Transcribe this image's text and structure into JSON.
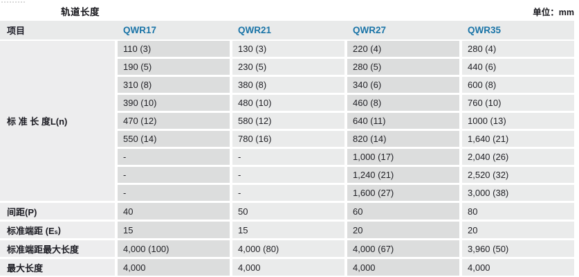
{
  "title": "轨道长度",
  "unit_label": "单位：mm",
  "table": {
    "header": [
      "项目",
      "QWR17",
      "QWR21",
      "QWR27",
      "QWR35"
    ],
    "standard_length": {
      "label": "标 准 长 度L(n)",
      "rows": [
        [
          "110 (3)",
          "130 (3)",
          "220 (4)",
          "280 (4)"
        ],
        [
          "190 (5)",
          "230 (5)",
          "280 (5)",
          "440 (6)"
        ],
        [
          "310 (8)",
          "380 (8)",
          "340 (6)",
          "600 (8)"
        ],
        [
          "390 (10)",
          "480 (10)",
          "460 (8)",
          "760 (10)"
        ],
        [
          "470 (12)",
          "580 (12)",
          "640 (11)",
          "1000 (13)"
        ],
        [
          "550 (14)",
          "780 (16)",
          "820 (14)",
          "1,640 (21)"
        ],
        [
          "-",
          "-",
          "1,000 (17)",
          "2,040 (26)"
        ],
        [
          "-",
          "-",
          "1,240 (21)",
          "2,520 (32)"
        ],
        [
          "-",
          "-",
          "1,600 (27)",
          "3,000 (38)"
        ]
      ]
    },
    "summary_rows": [
      {
        "label": "间距(P)",
        "values": [
          "40",
          "50",
          "60",
          "80"
        ]
      },
      {
        "label_parts": [
          "标准端距 (E",
          "s",
          ")"
        ],
        "values": [
          "15",
          "15",
          "20",
          "20"
        ]
      },
      {
        "label": "标准端距最大长度",
        "values": [
          "4,000 (100)",
          "4,000 (80)",
          "4,000 (67)",
          "3,960 (50)"
        ]
      },
      {
        "label": "最大长度",
        "values": [
          "4,000",
          "4,000",
          "4,000",
          "4,000"
        ]
      }
    ]
  },
  "colors": {
    "header_bg": "#e9eaea",
    "label_cell_bg": "#ededee",
    "column_dark_bg": "#dcdddd",
    "column_light_bg": "#eaebeb",
    "qwr_header_text": "#1a74a7",
    "body_text": "#212126"
  }
}
